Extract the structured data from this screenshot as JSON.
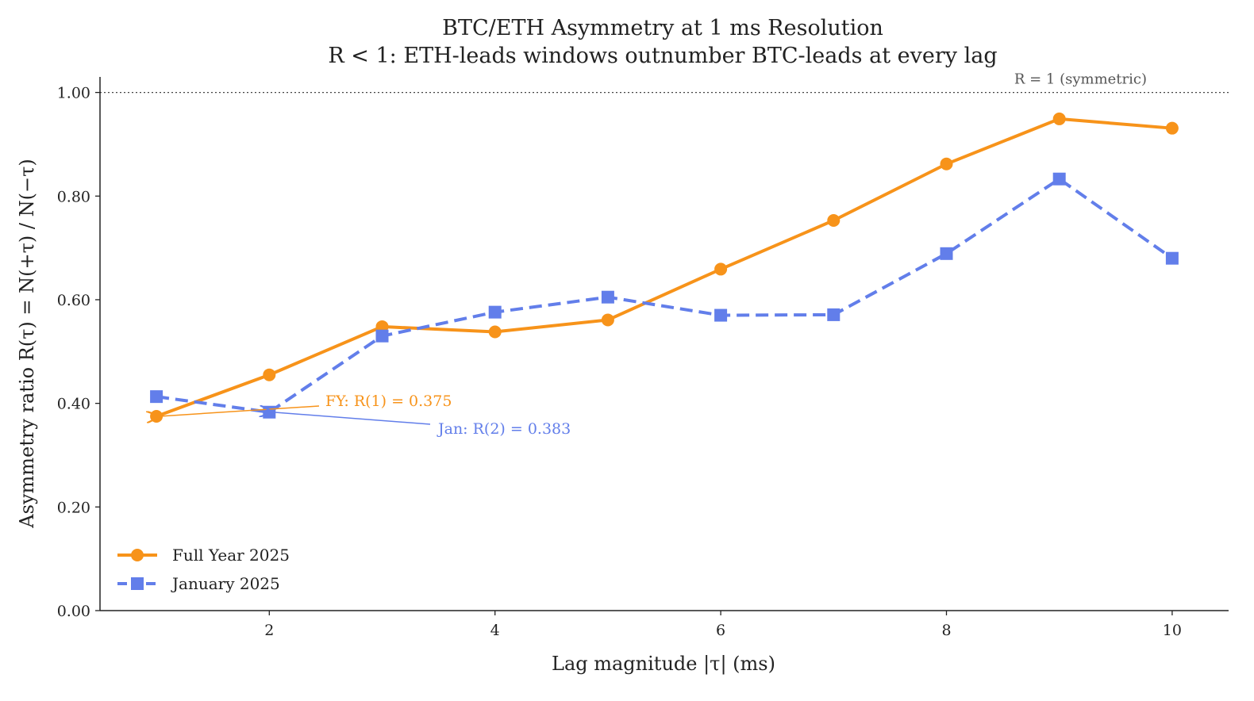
{
  "chart_data": {
    "type": "line",
    "title": "BTC/ETH Asymmetry at 1 ms Resolution",
    "subtitle": "R < 1: ETH-leads windows outnumber BTC-leads at every lag",
    "xlabel": "Lag magnitude |τ| (ms)",
    "ylabel": "Asymmetry ratio R(τ) = N(+τ) / N(−τ)",
    "xlim": [
      0.5,
      10.5
    ],
    "ylim": [
      0,
      1.03
    ],
    "xticks": [
      2,
      4,
      6,
      8,
      10
    ],
    "xtick_labels": [
      "2",
      "4",
      "6",
      "8",
      "10"
    ],
    "yticks": [
      0,
      0.2,
      0.4,
      0.6,
      0.8,
      1.0
    ],
    "ytick_labels": [
      "0.00",
      "0.20",
      "0.40",
      "0.60",
      "0.80",
      "1.00"
    ],
    "grid": false,
    "legend_placement": "lower-left",
    "x": [
      1,
      2,
      3,
      4,
      5,
      6,
      7,
      8,
      9,
      10
    ],
    "series": [
      {
        "name": "Full Year 2025",
        "color": "#f7931a",
        "marker": "circle",
        "linestyle": "solid",
        "values": [
          0.375,
          0.455,
          0.548,
          0.538,
          0.561,
          0.659,
          0.753,
          0.862,
          0.949,
          0.931
        ]
      },
      {
        "name": "January 2025",
        "color": "#627eea",
        "marker": "square",
        "linestyle": "dashed",
        "values": [
          0.413,
          0.383,
          0.53,
          0.576,
          0.605,
          0.57,
          0.571,
          0.689,
          0.833,
          0.68
        ]
      }
    ],
    "reference_line": {
      "y": 1.0,
      "label": "R = 1 (symmetric)",
      "style": "dotted"
    },
    "annotations": [
      {
        "text": "FY: R(1) = 0.375",
        "x": 1,
        "y": 0.375,
        "color": "#f7931a"
      },
      {
        "text": "Jan: R(2) = 0.383",
        "x": 2,
        "y": 0.383,
        "color": "#627eea"
      }
    ]
  }
}
